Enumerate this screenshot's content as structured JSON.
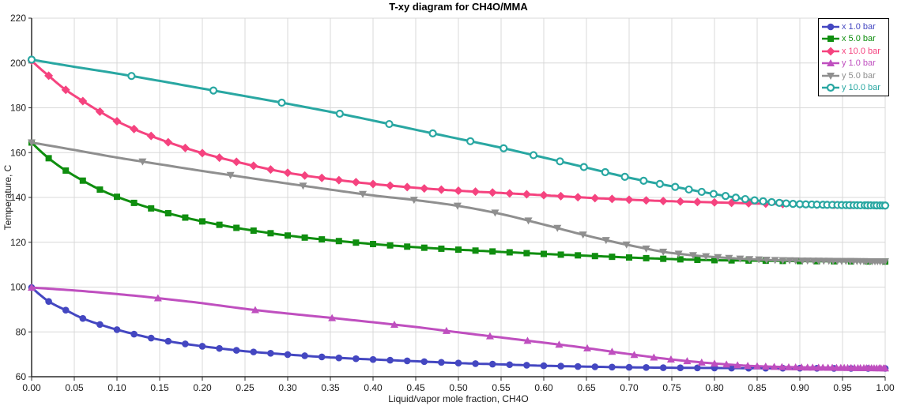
{
  "chart_data": {
    "type": "line",
    "title": "T-xy diagram for CH4O/MMA",
    "xlabel": "Liquid/vapor mole fraction, CH4O",
    "ylabel": "Temperature, C",
    "xlim": [
      0,
      1
    ],
    "ylim": [
      60,
      220
    ],
    "grid": true,
    "legend_position": "top-right",
    "x_tick_labels": [
      "0.00",
      "0.05",
      "0.10",
      "0.15",
      "0.20",
      "0.25",
      "0.30",
      "0.35",
      "0.40",
      "0.45",
      "0.50",
      "0.55",
      "0.60",
      "0.65",
      "0.70",
      "0.75",
      "0.80",
      "0.85",
      "0.90",
      "0.95",
      "1.00"
    ],
    "y_ticks": [
      60,
      80,
      100,
      120,
      140,
      160,
      180,
      200,
      220
    ],
    "series": [
      {
        "id": "x-1.0-bar",
        "label": "x  1.0 bar",
        "color": "#4447c1",
        "marker": "circle",
        "curve_x": [
          0,
          0.01,
          0.02,
          0.03,
          0.04,
          0.06,
          0.08,
          0.1,
          0.15,
          0.2,
          0.25,
          0.3,
          0.35,
          0.4,
          0.45,
          0.5,
          0.55,
          0.6,
          0.65,
          0.7,
          0.75,
          0.8,
          0.85,
          0.9,
          0.95,
          1
        ],
        "curve_T": [
          99.8,
          96.5,
          93.6,
          91.5,
          89.7,
          86.0,
          83.3,
          81.0,
          76.5,
          73.6,
          71.4,
          69.9,
          68.6,
          67.7,
          66.9,
          66.1,
          65.5,
          64.9,
          64.5,
          64.2,
          64.0,
          63.9,
          63.8,
          63.8,
          63.7,
          63.7
        ],
        "marker_x": [
          0,
          0.02,
          0.04,
          0.06,
          0.08,
          0.1,
          0.12,
          0.14,
          0.16,
          0.18,
          0.2,
          0.22,
          0.24,
          0.26,
          0.28,
          0.3,
          0.32,
          0.34,
          0.36,
          0.38,
          0.4,
          0.42,
          0.44,
          0.46,
          0.48,
          0.5,
          0.52,
          0.54,
          0.56,
          0.58,
          0.6,
          0.62,
          0.64,
          0.66,
          0.68,
          0.7,
          0.72,
          0.74,
          0.76,
          0.78,
          0.8,
          0.82,
          0.84,
          0.86,
          0.88,
          0.9,
          0.92,
          0.94,
          0.96,
          0.98,
          1
        ]
      },
      {
        "id": "x-5.0-bar",
        "label": "x  5.0 bar",
        "color": "#0f8e0f",
        "marker": "square",
        "curve_x": [
          0,
          0.01,
          0.02,
          0.03,
          0.04,
          0.06,
          0.08,
          0.1,
          0.15,
          0.2,
          0.25,
          0.3,
          0.35,
          0.4,
          0.45,
          0.5,
          0.55,
          0.6,
          0.65,
          0.7,
          0.75,
          0.8,
          0.85,
          0.9,
          0.95,
          1
        ],
        "curve_T": [
          164.5,
          160.8,
          157.5,
          154.6,
          152.0,
          147.5,
          143.5,
          140.3,
          134.0,
          129.3,
          125.8,
          123.0,
          120.9,
          119.2,
          117.8,
          116.7,
          115.7,
          114.8,
          114.0,
          113.2,
          112.5,
          112.0,
          111.8,
          111.6,
          111.5,
          111.4
        ],
        "marker_x": [
          0,
          0.02,
          0.04,
          0.06,
          0.08,
          0.1,
          0.12,
          0.14,
          0.16,
          0.18,
          0.2,
          0.22,
          0.24,
          0.26,
          0.28,
          0.3,
          0.32,
          0.34,
          0.36,
          0.38,
          0.4,
          0.42,
          0.44,
          0.46,
          0.48,
          0.5,
          0.52,
          0.54,
          0.56,
          0.58,
          0.6,
          0.62,
          0.64,
          0.66,
          0.68,
          0.7,
          0.72,
          0.74,
          0.76,
          0.78,
          0.8,
          0.82,
          0.84,
          0.86,
          0.88,
          0.9,
          0.92,
          0.94,
          0.96,
          0.98,
          1
        ]
      },
      {
        "id": "x-10.0-bar",
        "label": "x  10.0 bar",
        "color": "#f5437f",
        "marker": "diamond",
        "curve_x": [
          0,
          0.01,
          0.02,
          0.03,
          0.04,
          0.06,
          0.08,
          0.1,
          0.15,
          0.2,
          0.25,
          0.3,
          0.35,
          0.4,
          0.45,
          0.5,
          0.55,
          0.6,
          0.65,
          0.7,
          0.75,
          0.8,
          0.85,
          0.9,
          0.95,
          1
        ],
        "curve_T": [
          201.0,
          197.5,
          194.3,
          191.0,
          188.0,
          183.0,
          178.3,
          174.0,
          166.0,
          159.8,
          155.0,
          151.0,
          148.2,
          146.0,
          144.3,
          143.0,
          142.0,
          141.0,
          139.9,
          139.0,
          138.3,
          137.8,
          137.3,
          136.9,
          136.6,
          136.4
        ],
        "marker_x": [
          0,
          0.02,
          0.04,
          0.06,
          0.08,
          0.1,
          0.12,
          0.14,
          0.16,
          0.18,
          0.2,
          0.22,
          0.24,
          0.26,
          0.28,
          0.3,
          0.32,
          0.34,
          0.36,
          0.38,
          0.4,
          0.42,
          0.44,
          0.46,
          0.48,
          0.5,
          0.52,
          0.54,
          0.56,
          0.58,
          0.6,
          0.62,
          0.64,
          0.66,
          0.68,
          0.7,
          0.72,
          0.74,
          0.76,
          0.78,
          0.8,
          0.82,
          0.84,
          0.86,
          0.88,
          0.9,
          0.92,
          0.94,
          0.96,
          0.98,
          1
        ]
      },
      {
        "id": "y-1.0-bar",
        "label": "y  1.0 bar",
        "color": "#bf4fbf",
        "marker": "triangle-up",
        "curve_x": [
          0,
          0.05,
          0.1,
          0.15,
          0.2,
          0.25,
          0.3,
          0.35,
          0.4,
          0.45,
          0.5,
          0.55,
          0.6,
          0.65,
          0.7,
          0.75,
          0.8,
          0.85,
          0.9,
          0.95,
          1
        ],
        "curve_T": [
          99.8,
          98.5,
          96.9,
          95.0,
          92.8,
          90.3,
          88.2,
          86.3,
          84.3,
          82.2,
          79.8,
          77.5,
          75.2,
          72.8,
          70.1,
          67.7,
          65.9,
          64.7,
          64.2,
          64.0,
          63.8
        ],
        "marker_x": [
          0,
          0.148,
          0.262,
          0.352,
          0.425,
          0.486,
          0.537,
          0.581,
          0.618,
          0.651,
          0.68,
          0.706,
          0.729,
          0.749,
          0.768,
          0.785,
          0.8,
          0.814,
          0.827,
          0.839,
          0.85,
          0.86,
          0.87,
          0.879,
          0.887,
          0.895,
          0.902,
          0.909,
          0.915,
          0.922,
          0.927,
          0.933,
          0.938,
          0.943,
          0.948,
          0.952,
          0.956,
          0.96,
          0.964,
          0.968,
          0.971,
          0.975,
          0.978,
          0.981,
          0.984,
          0.987,
          0.99,
          0.993,
          0.995,
          0.998,
          1
        ]
      },
      {
        "id": "y-5.0-bar",
        "label": "y  5.0 bar",
        "color": "#8f8f8f",
        "marker": "triangle-down",
        "curve_x": [
          0,
          0.05,
          0.1,
          0.15,
          0.2,
          0.25,
          0.3,
          0.35,
          0.4,
          0.45,
          0.5,
          0.55,
          0.6,
          0.65,
          0.7,
          0.75,
          0.8,
          0.85,
          0.9,
          0.95,
          1
        ],
        "curve_T": [
          164.5,
          161.2,
          157.8,
          154.8,
          151.8,
          149.0,
          146.2,
          143.5,
          140.9,
          138.8,
          136.2,
          132.6,
          127.9,
          123.0,
          118.7,
          115.2,
          113.4,
          112.3,
          111.8,
          111.6,
          111.4
        ],
        "marker_x": [
          0,
          0.13,
          0.233,
          0.318,
          0.388,
          0.448,
          0.499,
          0.543,
          0.582,
          0.616,
          0.646,
          0.673,
          0.697,
          0.72,
          0.74,
          0.758,
          0.775,
          0.79,
          0.804,
          0.817,
          0.83,
          0.841,
          0.852,
          0.861,
          0.871,
          0.88,
          0.888,
          0.895,
          0.903,
          0.909,
          0.916,
          0.922,
          0.928,
          0.934,
          0.939,
          0.944,
          0.949,
          0.954,
          0.959,
          0.963,
          0.967,
          0.971,
          0.975,
          0.978,
          0.982,
          0.985,
          0.988,
          0.991,
          0.994,
          0.997,
          1
        ]
      },
      {
        "id": "y-10.0-bar",
        "label": "y  10.0 bar",
        "color": "#29a7a2",
        "marker": "circle-open",
        "curve_x": [
          0,
          0.05,
          0.1,
          0.15,
          0.2,
          0.25,
          0.3,
          0.35,
          0.4,
          0.45,
          0.5,
          0.55,
          0.6,
          0.65,
          0.7,
          0.75,
          0.8,
          0.85,
          0.9,
          0.95,
          1
        ],
        "curve_T": [
          201.5,
          198.3,
          195.3,
          192.0,
          188.6,
          185.2,
          181.8,
          178.2,
          174.3,
          170.2,
          166.2,
          162.2,
          157.8,
          153.3,
          148.8,
          145.0,
          141.5,
          138.6,
          137.0,
          136.6,
          136.4
        ],
        "marker_x": [
          0,
          0.117,
          0.213,
          0.293,
          0.361,
          0.419,
          0.47,
          0.514,
          0.553,
          0.588,
          0.619,
          0.647,
          0.672,
          0.695,
          0.717,
          0.736,
          0.754,
          0.77,
          0.785,
          0.799,
          0.813,
          0.825,
          0.836,
          0.847,
          0.857,
          0.867,
          0.876,
          0.884,
          0.892,
          0.9,
          0.907,
          0.914,
          0.92,
          0.927,
          0.932,
          0.938,
          0.944,
          0.949,
          0.954,
          0.958,
          0.963,
          0.967,
          0.971,
          0.976,
          0.979,
          0.983,
          0.987,
          0.99,
          0.994,
          0.997,
          1
        ]
      }
    ]
  },
  "colors": {
    "background": "#ffffff",
    "grid": "#d8d8d8",
    "axis": "#2b2b2b",
    "tick_text": "#1b1b1b",
    "legend_border": "#000000"
  }
}
